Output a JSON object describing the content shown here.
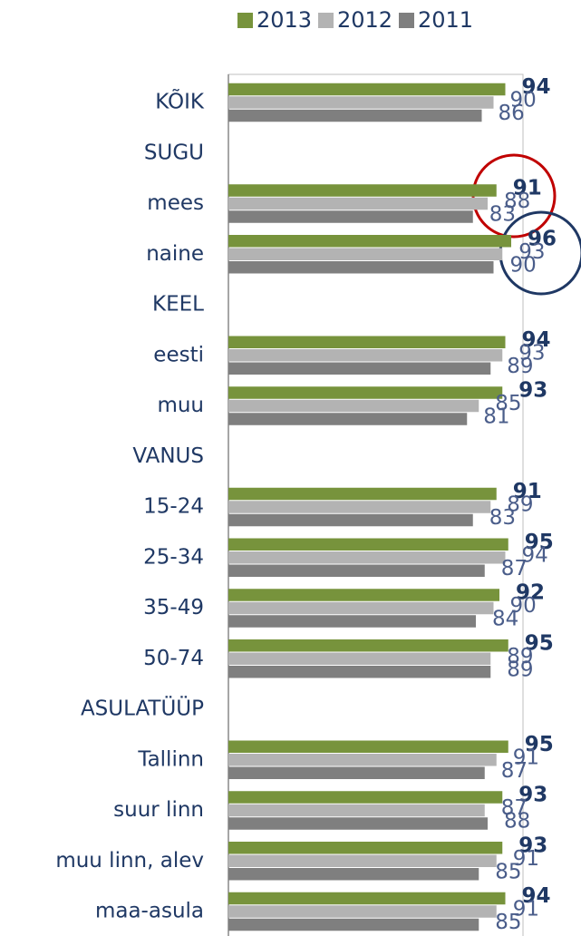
{
  "chart_data": {
    "type": "bar",
    "orientation": "horizontal",
    "categories": [
      "KÕIK",
      "SUGU",
      "mees",
      "naine",
      "KEEL",
      "eesti",
      "muu",
      "VANUS",
      "15-24",
      "25-34",
      "35-49",
      "50-74",
      "ASULATÜÜP",
      "Tallinn",
      "suur linn",
      "muu linn, alev",
      "maa-asula"
    ],
    "series": [
      {
        "name": "2013",
        "color": "#77933c",
        "values": [
          94,
          null,
          91,
          96,
          null,
          94,
          93,
          null,
          91,
          95,
          92,
          95,
          null,
          95,
          93,
          93,
          94
        ]
      },
      {
        "name": "2012",
        "color": "#b3b3b3",
        "values": [
          90,
          null,
          88,
          93,
          null,
          93,
          85,
          null,
          89,
          94,
          90,
          89,
          null,
          91,
          87,
          91,
          91
        ]
      },
      {
        "name": "2011",
        "color": "#7f7f7f",
        "values": [
          86,
          null,
          83,
          90,
          null,
          89,
          81,
          null,
          83,
          87,
          84,
          89,
          null,
          87,
          88,
          85,
          85
        ]
      }
    ],
    "xlim": [
      0,
      100
    ],
    "legend": "top"
  }
}
